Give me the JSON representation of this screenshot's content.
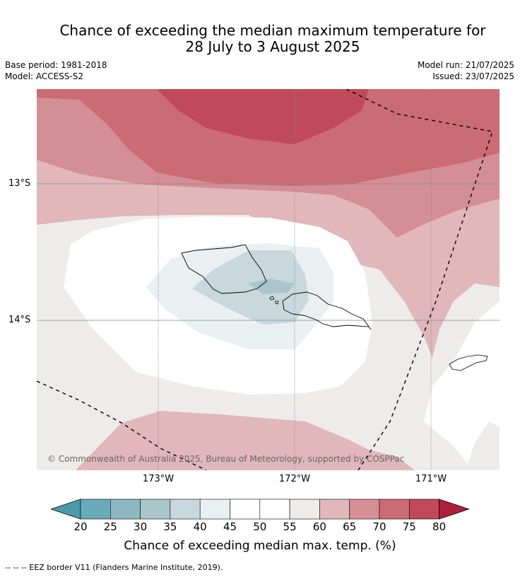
{
  "title": {
    "line1": "Chance of exceeding the median maximum temperature for",
    "line2": "28 July to 3 August 2025"
  },
  "meta": {
    "base_period": "Base period: 1981-2018",
    "model": "Model: ACCESS-S2",
    "model_run": "Model run: 21/07/2025",
    "issued": "Issued: 23/07/2025"
  },
  "map": {
    "lat_labels": [
      "13°S",
      "14°S"
    ],
    "lon_labels": [
      "173°W",
      "172°W",
      "171°W"
    ],
    "copyright": "© Commonwealth of Australia 2025, Bureau of Meteorology, supported by COSPPac"
  },
  "colorbar": {
    "ticks": [
      "20",
      "25",
      "30",
      "35",
      "40",
      "45",
      "50",
      "55",
      "60",
      "65",
      "70",
      "75",
      "80"
    ],
    "colors": [
      "#4a9aab",
      "#6aabbb",
      "#8db8c2",
      "#a9c6cb",
      "#c8d8dc",
      "#eaf0f1",
      "#ffffff",
      "#ffffff",
      "#eeeceb",
      "#e1b7bb",
      "#d48e95",
      "#cb6b74",
      "#c04a59",
      "#b01e3e"
    ],
    "label": "Chance of exceeding median max. temp. (%)"
  },
  "footer": {
    "eez_note": "--  --  -- EEZ border V11 (Flanders Marine Institute, 2019)."
  }
}
